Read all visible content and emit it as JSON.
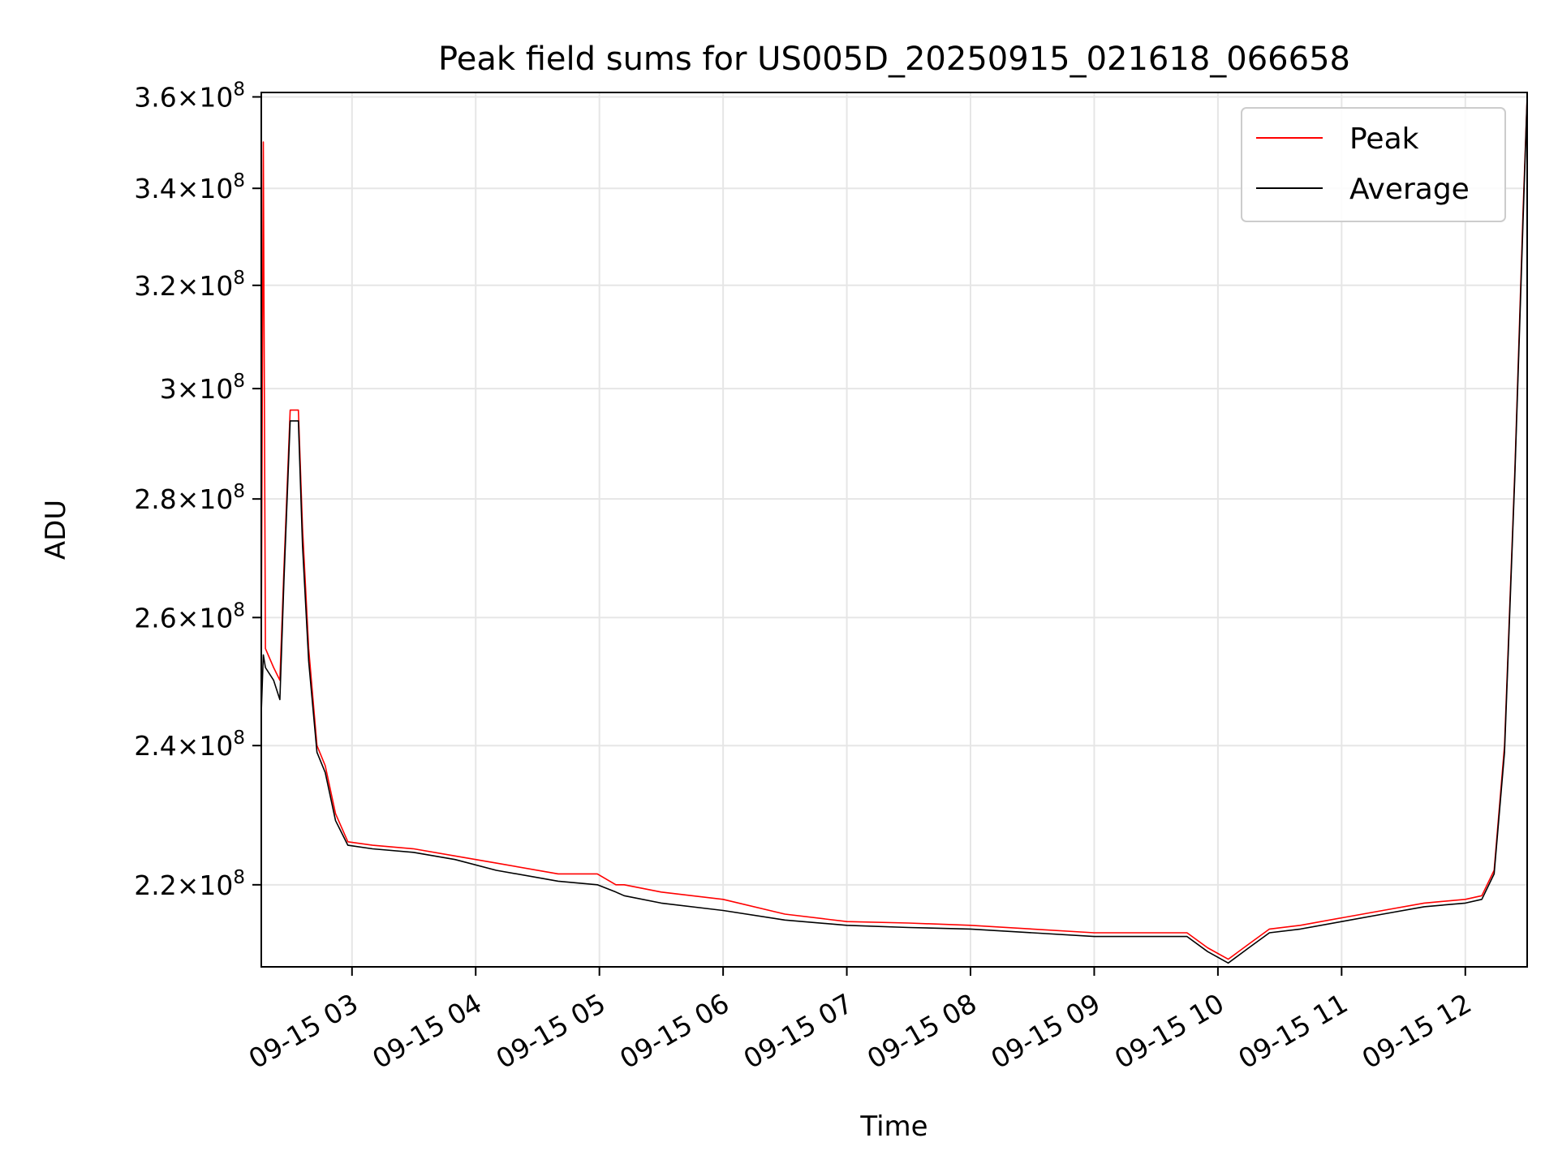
{
  "chart_data": {
    "type": "line",
    "title": "Peak field sums for US005D_20250915_021618_066658",
    "xlabel": "Time",
    "ylabel": "ADU",
    "y_scale": "log",
    "ylim": [
      209000000.0,
      361000000.0
    ],
    "xlim": [
      "09-15 02:16",
      "09-15 12:30"
    ],
    "grid": true,
    "legend_position": "top-right",
    "x_ticks": [
      "09-15 03",
      "09-15 04",
      "09-15 05",
      "09-15 06",
      "09-15 07",
      "09-15 08",
      "09-15 09",
      "09-15 10",
      "09-15 11",
      "09-15 12"
    ],
    "y_ticks": [
      {
        "value": 220000000.0,
        "mant": "2.2",
        "exp": "8"
      },
      {
        "value": 240000000.0,
        "mant": "2.4",
        "exp": "8"
      },
      {
        "value": 260000000.0,
        "mant": "2.6",
        "exp": "8"
      },
      {
        "value": 280000000.0,
        "mant": "2.8",
        "exp": "8"
      },
      {
        "value": 300000000.0,
        "mant": "3",
        "exp": "8"
      },
      {
        "value": 320000000.0,
        "mant": "3.2",
        "exp": "8"
      },
      {
        "value": 340000000.0,
        "mant": "3.4",
        "exp": "8"
      },
      {
        "value": 360000000.0,
        "mant": "3.6",
        "exp": "8"
      }
    ],
    "series": [
      {
        "name": "Peak",
        "color": "#ff0000",
        "x": [
          "09-15 02:16",
          "09-15 02:17",
          "09-15 02:18",
          "09-15 02:22",
          "09-15 02:25",
          "09-15 02:27",
          "09-15 02:30",
          "09-15 02:34",
          "09-15 02:36",
          "09-15 02:39",
          "09-15 02:43",
          "09-15 02:47",
          "09-15 02:52",
          "09-15 02:58",
          "09-15 03:10",
          "09-15 03:30",
          "09-15 03:50",
          "09-15 04:10",
          "09-15 04:40",
          "09-15 04:59",
          "09-15 05:08",
          "09-15 05:12",
          "09-15 05:30",
          "09-15 06:00",
          "09-15 06:30",
          "09-15 07:00",
          "09-15 07:30",
          "09-15 08:00",
          "09-15 08:30",
          "09-15 09:00",
          "09-15 09:30",
          "09-15 09:45",
          "09-15 09:55",
          "09-15 10:05",
          "09-15 10:15",
          "09-15 10:25",
          "09-15 10:40",
          "09-15 11:00",
          "09-15 11:20",
          "09-15 11:40",
          "09-15 12:00",
          "09-15 12:08",
          "09-15 12:14",
          "09-15 12:19",
          "09-15 12:24",
          "09-15 12:28",
          "09-15 12:30"
        ],
        "y": [
          255000000.0,
          350000000.0,
          255000000.0,
          252000000.0,
          250000000.0,
          268000000.0,
          296000000.0,
          296000000.0,
          275000000.0,
          255000000.0,
          240000000.0,
          237000000.0,
          230000000.0,
          226000000.0,
          225500000.0,
          225000000.0,
          224000000.0,
          223000000.0,
          221500000.0,
          221500000.0,
          220000000.0,
          220000000.0,
          219000000.0,
          218000000.0,
          216000000.0,
          215000000.0,
          214800000.0,
          214500000.0,
          214000000.0,
          213500000.0,
          213500000.0,
          213500000.0,
          211500000.0,
          210000000.0,
          212000000.0,
          214000000.0,
          214500000.0,
          215500000.0,
          216500000.0,
          217500000.0,
          218000000.0,
          218500000.0,
          222000000.0,
          240000000.0,
          285000000.0,
          335000000.0,
          360000000.0
        ]
      },
      {
        "name": "Average",
        "color": "#000000",
        "x": [
          "09-15 02:16",
          "09-15 02:17",
          "09-15 02:18",
          "09-15 02:22",
          "09-15 02:25",
          "09-15 02:27",
          "09-15 02:30",
          "09-15 02:34",
          "09-15 02:36",
          "09-15 02:39",
          "09-15 02:43",
          "09-15 02:47",
          "09-15 02:52",
          "09-15 02:58",
          "09-15 03:10",
          "09-15 03:30",
          "09-15 03:50",
          "09-15 04:10",
          "09-15 04:40",
          "09-15 04:59",
          "09-15 05:08",
          "09-15 05:12",
          "09-15 05:30",
          "09-15 06:00",
          "09-15 06:30",
          "09-15 07:00",
          "09-15 07:30",
          "09-15 08:00",
          "09-15 08:30",
          "09-15 09:00",
          "09-15 09:30",
          "09-15 09:45",
          "09-15 09:55",
          "09-15 10:05",
          "09-15 10:15",
          "09-15 10:25",
          "09-15 10:40",
          "09-15 11:00",
          "09-15 11:20",
          "09-15 11:40",
          "09-15 12:00",
          "09-15 12:08",
          "09-15 12:14",
          "09-15 12:19",
          "09-15 12:24",
          "09-15 12:28",
          "09-15 12:30"
        ],
        "y": [
          245000000.0,
          254000000.0,
          252000000.0,
          250000000.0,
          247000000.0,
          266000000.0,
          294000000.0,
          294000000.0,
          272000000.0,
          253000000.0,
          239000000.0,
          236000000.0,
          229000000.0,
          225500000.0,
          225000000.0,
          224500000.0,
          223500000.0,
          222000000.0,
          220500000.0,
          220000000.0,
          219000000.0,
          218500000.0,
          217500000.0,
          216500000.0,
          215200000.0,
          214500000.0,
          214200000.0,
          214000000.0,
          213500000.0,
          213000000.0,
          213000000.0,
          213000000.0,
          211000000.0,
          209500000.0,
          211500000.0,
          213500000.0,
          214000000.0,
          215000000.0,
          216000000.0,
          217000000.0,
          217500000.0,
          218000000.0,
          221500000.0,
          239000000.0,
          284000000.0,
          333000000.0,
          360000000.0
        ]
      }
    ]
  }
}
